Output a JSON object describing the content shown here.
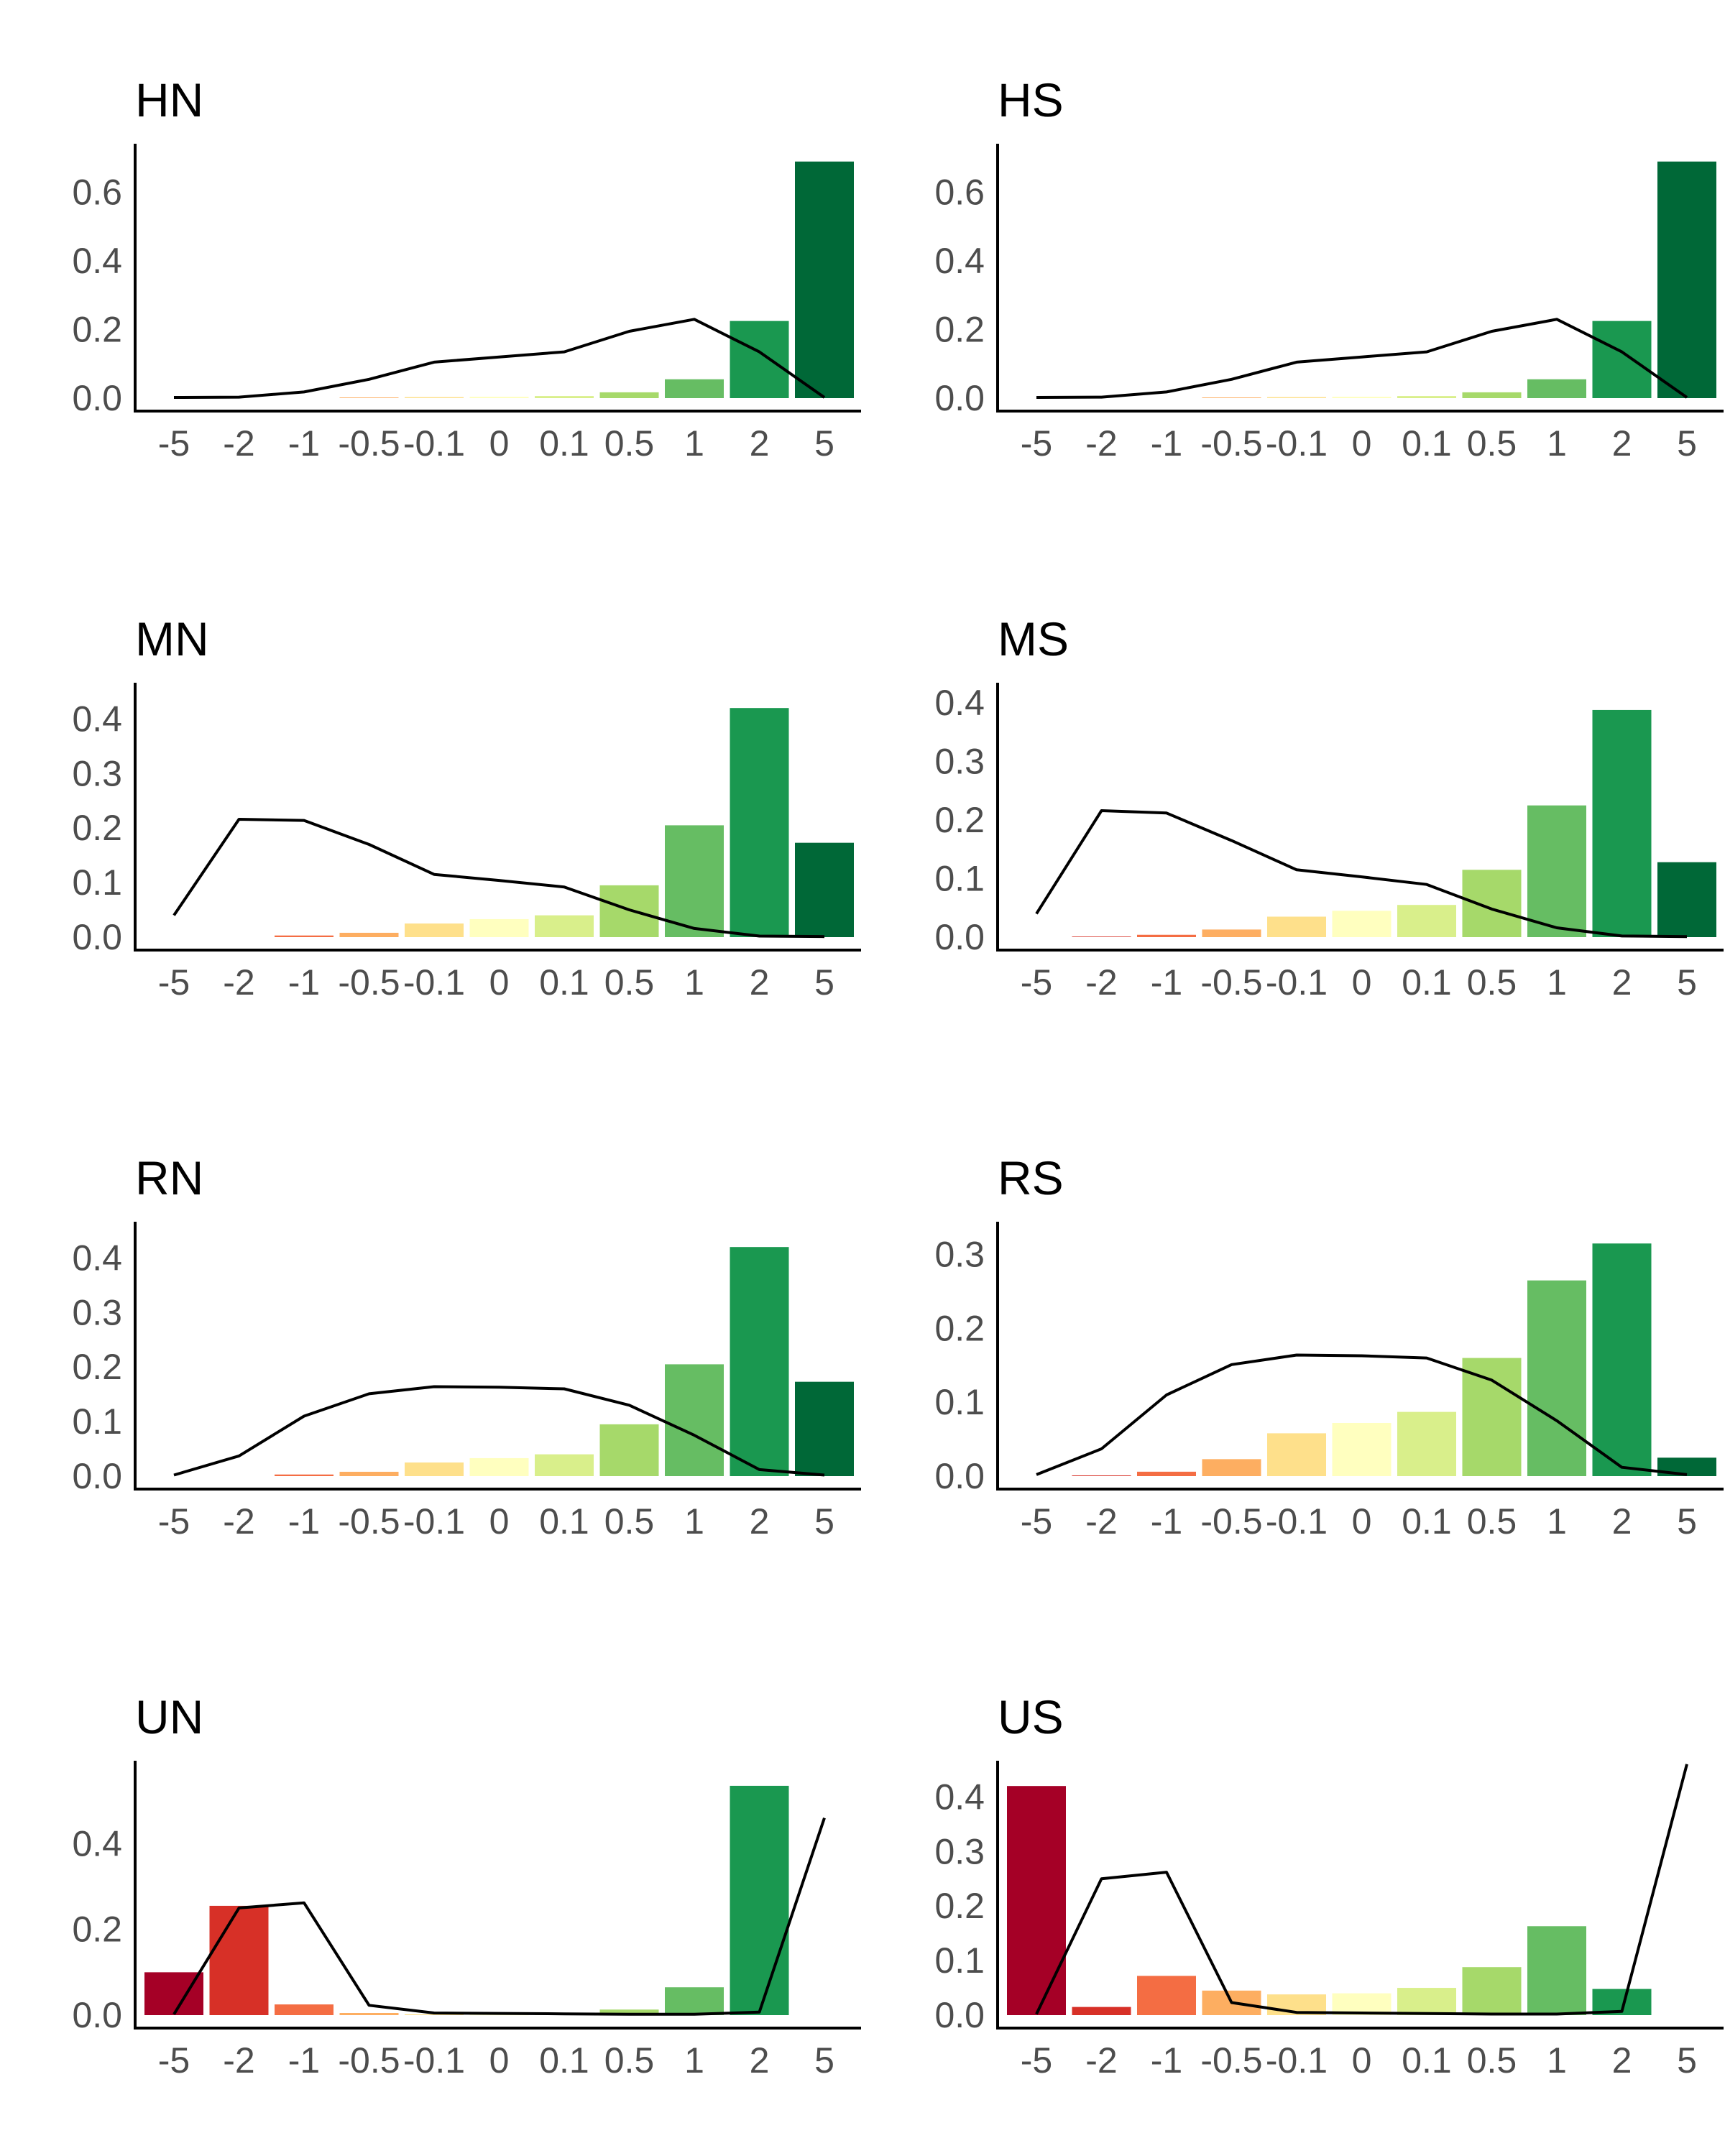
{
  "categories": [
    "-5",
    "-2",
    "-1",
    "-0.5",
    "-0.1",
    "0",
    "0.1",
    "0.5",
    "1",
    "2",
    "5"
  ],
  "colors": [
    "#a50026",
    "#d73027",
    "#f46d43",
    "#fdae61",
    "#fee08b",
    "#ffffbf",
    "#d9ef8b",
    "#a6d96a",
    "#66bd63",
    "#1a9850",
    "#006837"
  ],
  "chart_data": [
    {
      "type": "bar",
      "title": "HN",
      "xlabel": "",
      "ylabel": "",
      "ylim": [
        0,
        0.7
      ],
      "yticks": [
        0.0,
        0.2,
        0.4,
        0.6
      ],
      "tick_decimals": 1,
      "values": [
        0.0,
        0.0,
        0.0,
        0.002,
        0.003,
        0.004,
        0.006,
        0.017,
        0.055,
        0.225,
        0.69
      ],
      "line": [
        0.002,
        0.003,
        0.018,
        0.055,
        0.105,
        0.12,
        0.135,
        0.195,
        0.23,
        0.135,
        0.002
      ]
    },
    {
      "type": "bar",
      "title": "HS",
      "xlabel": "",
      "ylabel": "",
      "ylim": [
        0,
        0.7
      ],
      "yticks": [
        0.0,
        0.2,
        0.4,
        0.6
      ],
      "tick_decimals": 1,
      "values": [
        0.0,
        0.0,
        0.0,
        0.002,
        0.003,
        0.004,
        0.006,
        0.017,
        0.055,
        0.225,
        0.69
      ],
      "line": [
        0.002,
        0.003,
        0.018,
        0.055,
        0.105,
        0.12,
        0.135,
        0.195,
        0.23,
        0.135,
        0.002
      ]
    },
    {
      "type": "bar",
      "title": "MN",
      "xlabel": "",
      "ylabel": "",
      "ylim": [
        0,
        0.44
      ],
      "yticks": [
        0.0,
        0.1,
        0.2,
        0.3,
        0.4
      ],
      "tick_decimals": 1,
      "values": [
        0.0,
        0.0,
        0.003,
        0.008,
        0.025,
        0.033,
        0.04,
        0.095,
        0.205,
        0.42,
        0.173
      ],
      "line": [
        0.04,
        0.216,
        0.214,
        0.17,
        0.115,
        0.104,
        0.092,
        0.05,
        0.016,
        0.002,
        0.001
      ]
    },
    {
      "type": "bar",
      "title": "MS",
      "xlabel": "",
      "ylabel": "",
      "ylim": [
        0,
        0.41
      ],
      "yticks": [
        0.0,
        0.1,
        0.2,
        0.3,
        0.4
      ],
      "tick_decimals": 1,
      "values": [
        0.0,
        0.001,
        0.004,
        0.013,
        0.035,
        0.045,
        0.055,
        0.115,
        0.225,
        0.388,
        0.128
      ],
      "line": [
        0.04,
        0.216,
        0.212,
        0.165,
        0.115,
        0.103,
        0.09,
        0.048,
        0.016,
        0.002,
        0.001
      ]
    },
    {
      "type": "bar",
      "title": "RN",
      "xlabel": "",
      "ylabel": "",
      "ylim": [
        0,
        0.44
      ],
      "yticks": [
        0.0,
        0.1,
        0.2,
        0.3,
        0.4
      ],
      "tick_decimals": 1,
      "values": [
        0.0,
        0.0,
        0.003,
        0.008,
        0.025,
        0.033,
        0.04,
        0.095,
        0.205,
        0.42,
        0.173
      ],
      "line": [
        0.002,
        0.037,
        0.11,
        0.151,
        0.164,
        0.163,
        0.16,
        0.13,
        0.075,
        0.012,
        0.002
      ]
    },
    {
      "type": "bar",
      "title": "RS",
      "xlabel": "",
      "ylabel": "",
      "ylim": [
        0,
        0.325
      ],
      "yticks": [
        0.0,
        0.1,
        0.2,
        0.3
      ],
      "tick_decimals": 1,
      "values": [
        0.0,
        0.001,
        0.006,
        0.023,
        0.058,
        0.072,
        0.087,
        0.16,
        0.265,
        0.315,
        0.025
      ],
      "line": [
        0.002,
        0.037,
        0.11,
        0.151,
        0.164,
        0.163,
        0.16,
        0.13,
        0.075,
        0.012,
        0.002
      ]
    },
    {
      "type": "bar",
      "title": "UN",
      "xlabel": "",
      "ylabel": "",
      "ylim": [
        0,
        0.56
      ],
      "yticks": [
        0.0,
        0.2,
        0.4
      ],
      "tick_decimals": 1,
      "values": [
        0.1,
        0.255,
        0.025,
        0.005,
        0.002,
        0.001,
        0.002,
        0.013,
        0.065,
        0.535,
        0.0
      ],
      "line": [
        0.002,
        0.25,
        0.262,
        0.023,
        0.005,
        0.004,
        0.003,
        0.002,
        0.002,
        0.007,
        0.46
      ]
    },
    {
      "type": "bar",
      "title": "US",
      "xlabel": "",
      "ylabel": "",
      "ylim": [
        0,
        0.44
      ],
      "yticks": [
        0.0,
        0.1,
        0.2,
        0.3,
        0.4
      ],
      "tick_decimals": 1,
      "values": [
        0.42,
        0.015,
        0.072,
        0.045,
        0.038,
        0.04,
        0.05,
        0.088,
        0.163,
        0.048,
        0.0
      ],
      "line": [
        0.002,
        0.25,
        0.262,
        0.023,
        0.005,
        0.004,
        0.003,
        0.002,
        0.002,
        0.007,
        0.46
      ]
    }
  ]
}
